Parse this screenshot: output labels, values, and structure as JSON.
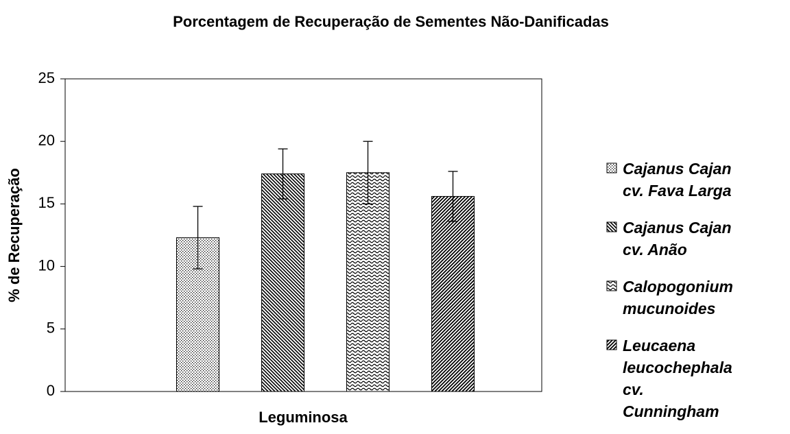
{
  "chart_data": {
    "type": "bar",
    "title": "Porcentagem de Recuperação de Sementes Não-Danificadas",
    "x_label": "Leguminosa",
    "y_label": "% de Recuperação",
    "categories": [
      null
    ],
    "series": [
      {
        "name": "Cajanus Cajan cv. Fava Larga",
        "color": "#000000",
        "pattern": "dots",
        "values": [
          12.3
        ],
        "errors": [
          2.5
        ]
      },
      {
        "name": "Cajanus Cajan cv. Anão",
        "color": "#000000",
        "pattern": "diagonal-down",
        "values": [
          17.4
        ],
        "errors": [
          2.0
        ]
      },
      {
        "name": "Calopogonium mucunoides",
        "color": "#000000",
        "pattern": "waves",
        "values": [
          17.5
        ],
        "errors": [
          2.5
        ]
      },
      {
        "name": "Leucaena leucochephala cv. Cunningham",
        "color": "#000000",
        "pattern": "diagonal-up",
        "values": [
          15.6
        ],
        "errors": [
          2.0
        ]
      }
    ],
    "ylim": [
      0,
      25
    ],
    "yticks": [
      0,
      5,
      10,
      15,
      20,
      25
    ],
    "grid": false,
    "legend": "right"
  }
}
